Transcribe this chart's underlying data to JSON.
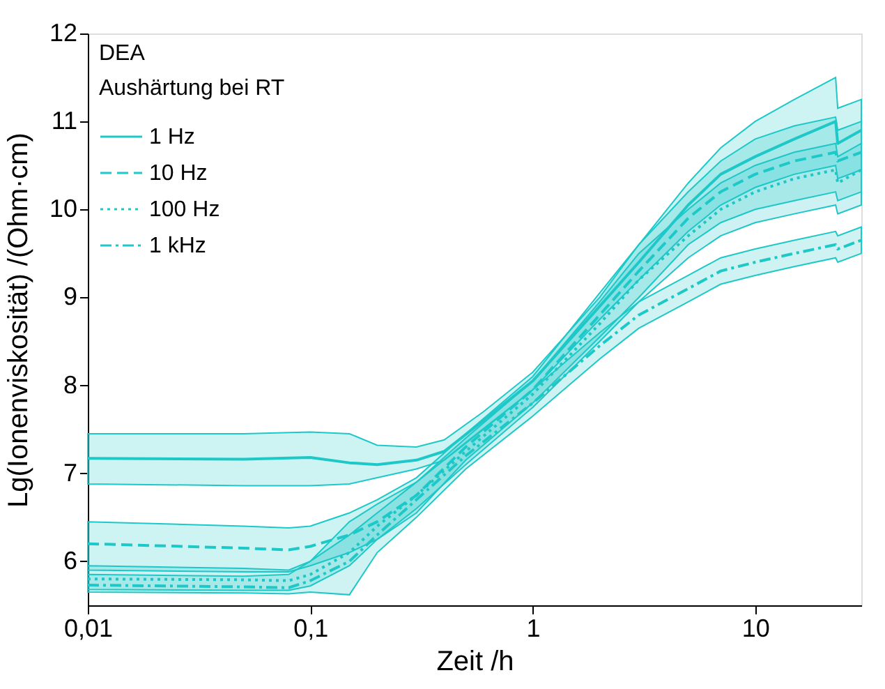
{
  "chart_data": {
    "type": "line",
    "xlabel": "Zeit /h",
    "ylabel": "Lg(Ionenviskosität) /(Ohm·cm)",
    "annotations": [
      "DEA",
      "Aushärtung bei RT"
    ],
    "log": "x",
    "xlim": [
      0.01,
      30
    ],
    "xticks": [
      {
        "value": 0.01,
        "label": "0,01"
      },
      {
        "value": 0.1,
        "label": "0,1"
      },
      1,
      10
    ],
    "ylim": [
      5.5,
      12
    ],
    "yticks": [
      6,
      7,
      8,
      9,
      10,
      11,
      12
    ],
    "grid": false,
    "legend": "top left",
    "series": [
      {
        "name": "1 Hz",
        "color": "#1ec8c8",
        "line_style": "solid",
        "x": [
          0.01,
          0.05,
          0.1,
          0.15,
          0.2,
          0.3,
          0.4,
          0.6,
          1,
          2,
          3,
          5,
          7,
          10,
          15,
          23,
          23.5,
          30
        ],
        "values": [
          7.17,
          7.16,
          7.18,
          7.12,
          7.1,
          7.15,
          7.25,
          7.6,
          8.05,
          8.9,
          9.4,
          10.05,
          10.4,
          10.6,
          10.8,
          11.0,
          10.75,
          10.9
        ],
        "upper": [
          7.45,
          7.45,
          7.47,
          7.45,
          7.32,
          7.3,
          7.38,
          7.7,
          8.15,
          9.0,
          9.6,
          10.3,
          10.7,
          11.0,
          11.25,
          11.5,
          11.15,
          11.25
        ],
        "lower": [
          6.88,
          6.86,
          6.86,
          6.88,
          6.95,
          7.05,
          7.15,
          7.5,
          7.95,
          8.75,
          9.2,
          9.75,
          10.05,
          10.25,
          10.4,
          10.5,
          10.35,
          10.45
        ]
      },
      {
        "name": "10 Hz",
        "color": "#1cc8c8",
        "line_style": "dashed",
        "x": [
          0.01,
          0.05,
          0.08,
          0.1,
          0.15,
          0.2,
          0.3,
          0.5,
          1,
          2,
          3,
          5,
          7,
          10,
          15,
          23,
          23.5,
          30
        ],
        "values": [
          6.2,
          6.15,
          6.13,
          6.17,
          6.3,
          6.45,
          6.75,
          7.3,
          7.95,
          8.8,
          9.3,
          9.9,
          10.2,
          10.4,
          10.55,
          10.65,
          10.55,
          10.65
        ],
        "upper": [
          6.45,
          6.4,
          6.38,
          6.4,
          6.55,
          6.7,
          6.95,
          7.45,
          8.1,
          9.05,
          9.6,
          10.2,
          10.55,
          10.8,
          10.95,
          11.05,
          10.9,
          11.0
        ],
        "lower": [
          5.9,
          5.88,
          5.88,
          5.95,
          6.1,
          6.25,
          6.55,
          7.15,
          7.8,
          8.55,
          9.0,
          9.6,
          9.85,
          10.0,
          10.1,
          10.2,
          10.1,
          10.2
        ]
      },
      {
        "name": "100 Hz",
        "color": "#1ec6c8",
        "line_style": "dotted",
        "x": [
          0.01,
          0.05,
          0.08,
          0.1,
          0.15,
          0.2,
          0.3,
          0.5,
          1,
          2,
          3,
          5,
          7,
          10,
          15,
          23,
          23.5,
          30
        ],
        "values": [
          5.8,
          5.79,
          5.78,
          5.85,
          6.1,
          6.4,
          6.75,
          7.25,
          7.9,
          8.7,
          9.2,
          9.7,
          10.0,
          10.2,
          10.35,
          10.45,
          10.3,
          10.45
        ],
        "upper": [
          5.95,
          5.92,
          5.9,
          6.0,
          6.3,
          6.55,
          6.9,
          7.4,
          8.05,
          8.95,
          9.5,
          10.0,
          10.3,
          10.5,
          10.65,
          10.75,
          10.6,
          10.75
        ],
        "lower": [
          5.68,
          5.67,
          5.67,
          5.72,
          5.95,
          6.25,
          6.6,
          7.1,
          7.75,
          8.5,
          8.95,
          9.45,
          9.7,
          9.85,
          9.95,
          10.05,
          9.95,
          10.05
        ]
      },
      {
        "name": "1 kHz",
        "color": "#1ec8c6",
        "line_style": "dashdot",
        "x": [
          0.01,
          0.05,
          0.08,
          0.1,
          0.15,
          0.2,
          0.3,
          0.5,
          1,
          2,
          3,
          5,
          7,
          10,
          15,
          23,
          23.5,
          30
        ],
        "values": [
          5.73,
          5.71,
          5.7,
          5.78,
          6.0,
          6.3,
          6.7,
          7.2,
          7.8,
          8.45,
          8.8,
          9.1,
          9.3,
          9.4,
          9.5,
          9.6,
          9.55,
          9.65
        ],
        "upper": [
          5.85,
          5.83,
          5.85,
          6.0,
          6.45,
          6.65,
          6.9,
          7.35,
          7.95,
          8.6,
          8.95,
          9.25,
          9.45,
          9.55,
          9.65,
          9.75,
          9.7,
          9.8
        ],
        "lower": [
          5.65,
          5.64,
          5.63,
          5.65,
          5.62,
          6.1,
          6.5,
          7.05,
          7.65,
          8.3,
          8.65,
          8.95,
          9.15,
          9.25,
          9.35,
          9.45,
          9.4,
          9.5
        ]
      }
    ]
  }
}
